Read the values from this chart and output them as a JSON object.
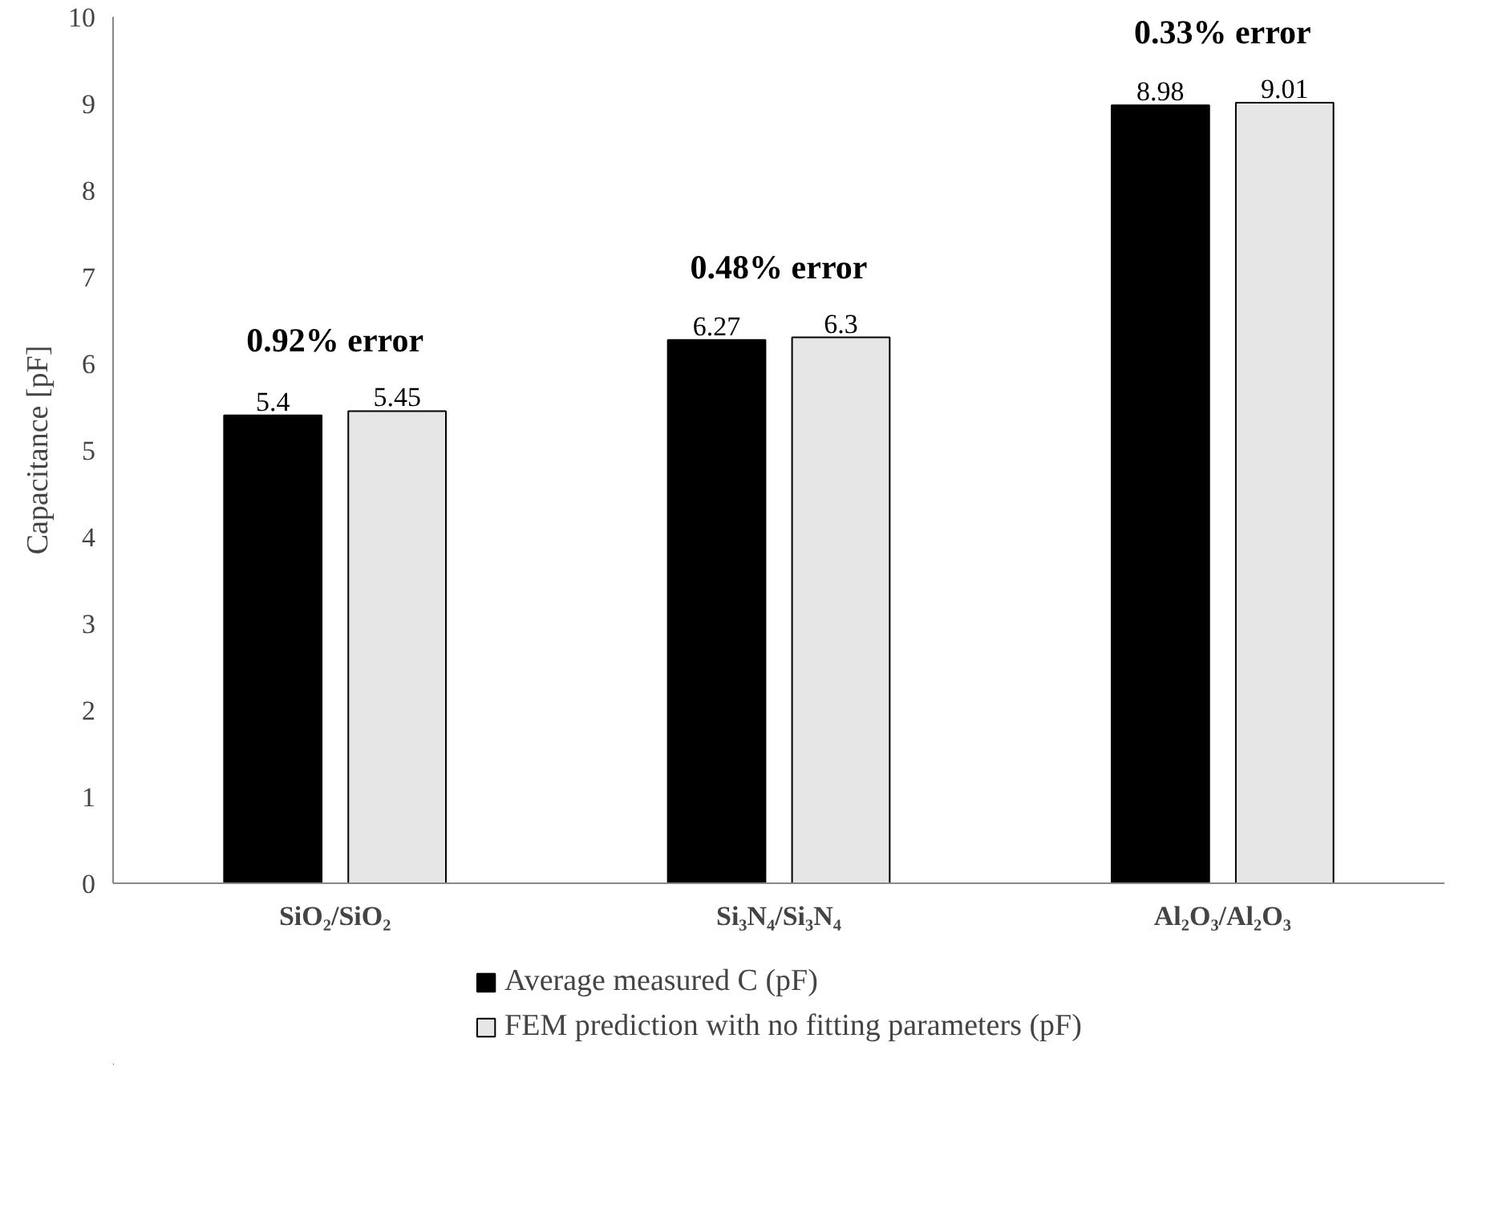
{
  "chart_data": {
    "type": "bar",
    "ylabel": "Capacitance [pF]",
    "categories": [
      "SiO₂/SiO₂",
      "Si₃N₄/Si₃N₄",
      "Al₂O₃/Al₂O₃"
    ],
    "series": [
      {
        "name": "Average measured C (pF)",
        "color": "#000000",
        "values": [
          5.4,
          6.27,
          8.98
        ]
      },
      {
        "name": "FEM prediction with no fitting parameters (pF)",
        "color": "#e6e6e6",
        "values": [
          5.45,
          6.3,
          9.01
        ]
      }
    ],
    "data_labels": true,
    "annotations": [
      "0.92% error",
      "0.48% error",
      "0.33% error"
    ],
    "ylim": [
      0,
      10
    ],
    "yticks": [
      0,
      1,
      2,
      3,
      4,
      5,
      6,
      7,
      8,
      9,
      10
    ],
    "grid": false,
    "legend": "bottom"
  }
}
